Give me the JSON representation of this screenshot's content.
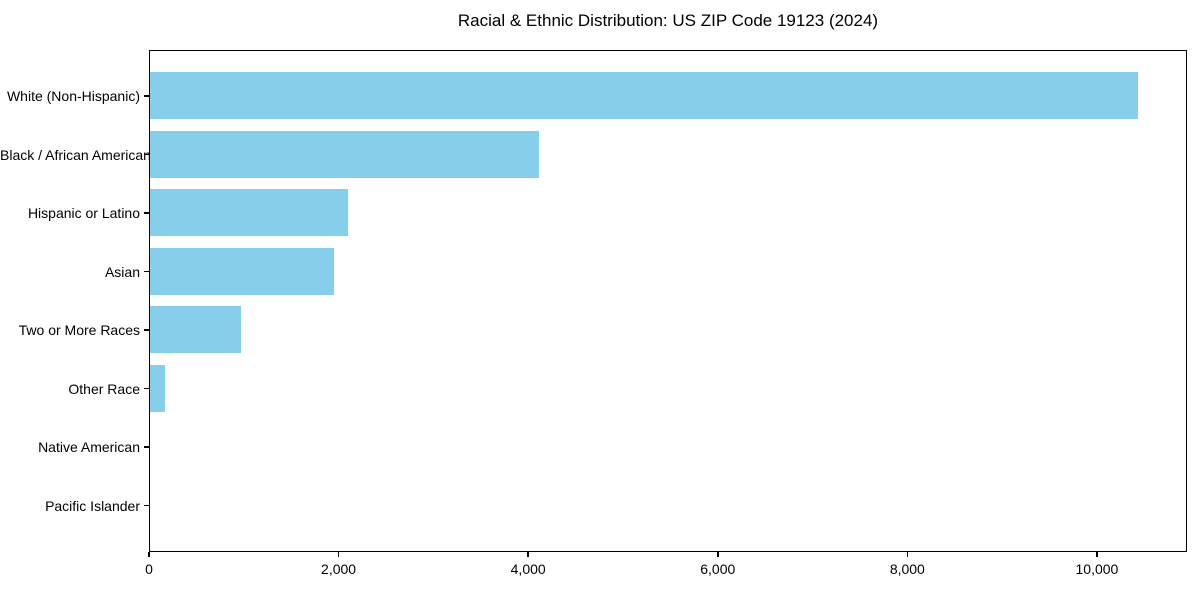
{
  "chart_data": {
    "type": "bar",
    "orientation": "horizontal",
    "title": "Racial & Ethnic Distribution: US ZIP Code 19123 (2024)",
    "categories": [
      "White (Non-Hispanic)",
      "Black / African American",
      "Hispanic or Latino",
      "Asian",
      "Two or More Races",
      "Other Race",
      "Native American",
      "Pacific Islander"
    ],
    "values": [
      10420,
      4100,
      2090,
      1940,
      960,
      160,
      0,
      0
    ],
    "xlabel": "",
    "ylabel": "",
    "xlim": [
      0,
      10950
    ],
    "x_ticks": [
      0,
      2000,
      4000,
      6000,
      8000,
      10000
    ],
    "x_tick_labels": [
      "0",
      "2,000",
      "4,000",
      "6,000",
      "8,000",
      "10,000"
    ],
    "bar_color": "#87ceeb",
    "text_color": "#000000",
    "frame_color": "#000000",
    "background": "#ffffff",
    "grid": false,
    "legend": null
  }
}
